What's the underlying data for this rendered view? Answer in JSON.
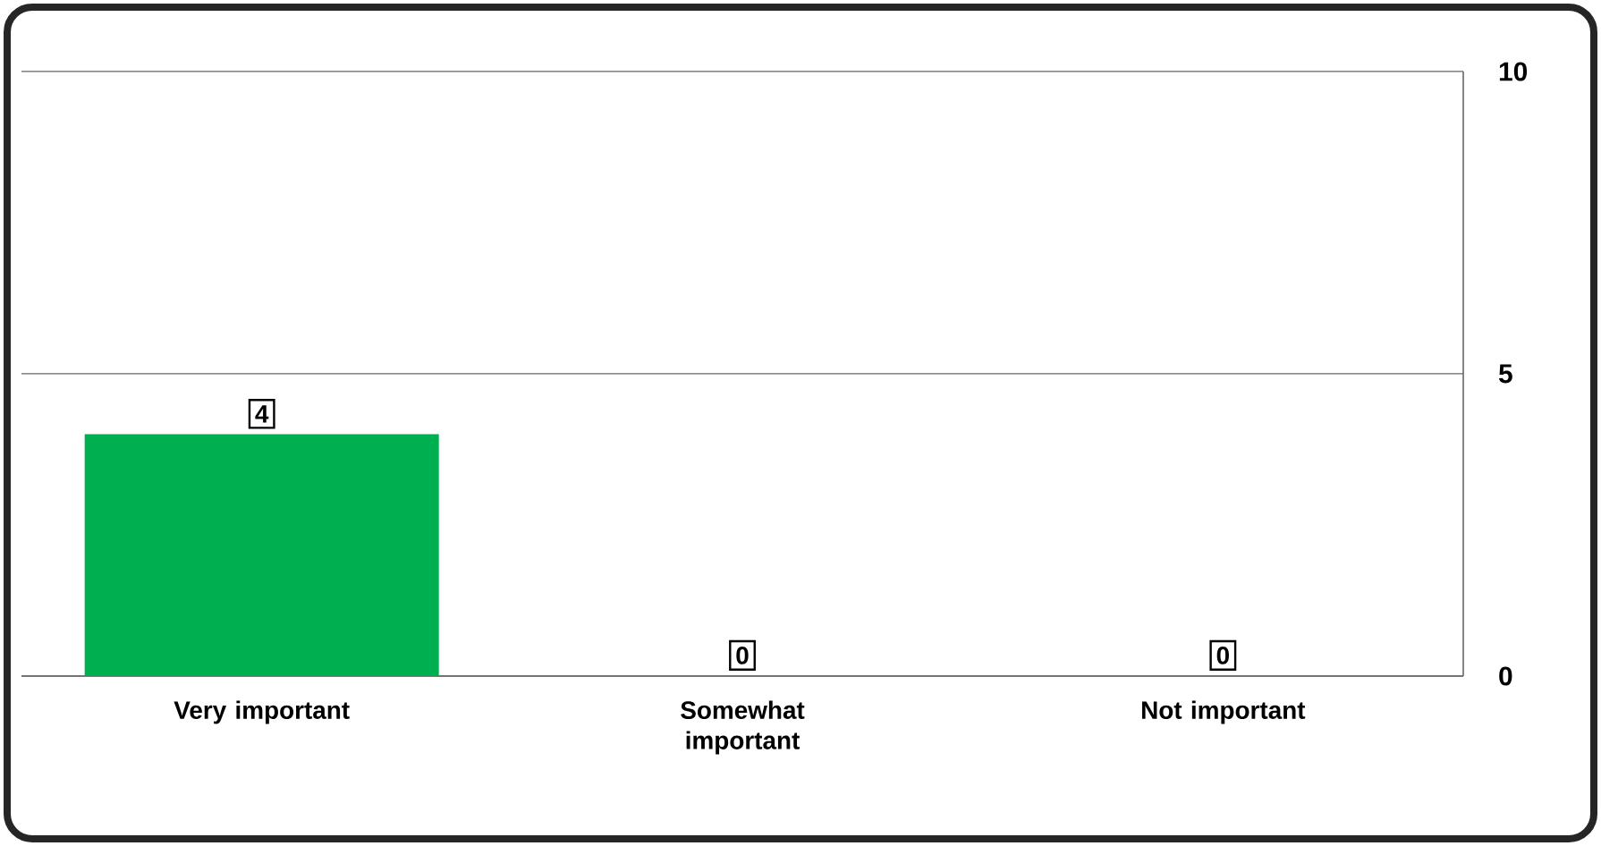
{
  "chart_data": {
    "type": "bar",
    "categories": [
      "Very important",
      "Somewhat important",
      "Not important"
    ],
    "values": [
      4,
      0,
      0
    ],
    "color": "#00b050",
    "ylim": [
      0,
      10
    ],
    "yticks": [
      0,
      5,
      10
    ],
    "grid": "y",
    "data_labels": true
  }
}
